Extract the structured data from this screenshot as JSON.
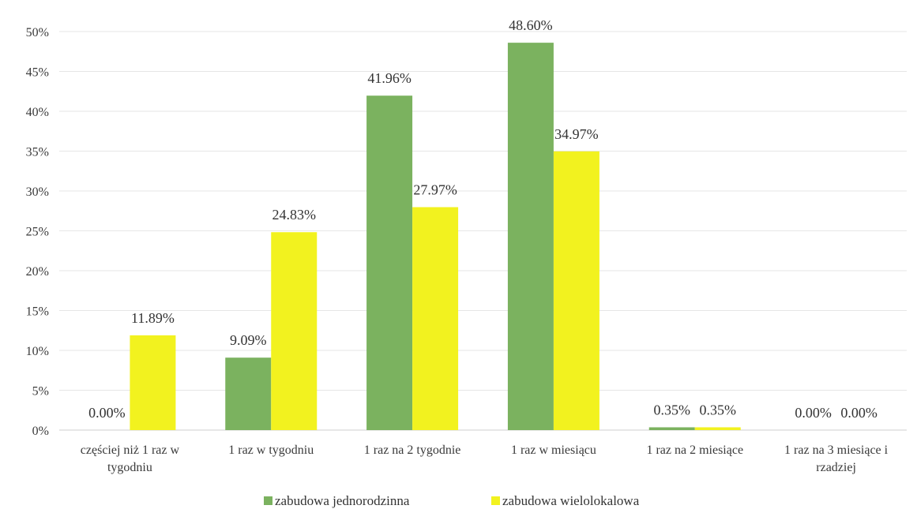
{
  "chart_data": {
    "type": "bar",
    "title": "",
    "xlabel": "",
    "ylabel": "",
    "ylim": [
      0,
      50
    ],
    "yticks": [
      "0%",
      "5%",
      "10%",
      "15%",
      "20%",
      "25%",
      "30%",
      "35%",
      "40%",
      "45%",
      "50%"
    ],
    "grid": true,
    "legend_position": "bottom",
    "categories": [
      [
        "częściej niż 1 raz w",
        "tygodniu"
      ],
      [
        "1 raz w tygodniu"
      ],
      [
        "1 raz na 2 tygodnie"
      ],
      [
        "1 raz w miesiącu"
      ],
      [
        "1 raz na 2 miesiące"
      ],
      [
        "1 raz na 3 miesiące i",
        "rzadziej"
      ]
    ],
    "series": [
      {
        "name": "zabudowa jednorodzinna",
        "color": "#7bb25f",
        "values": [
          0.0,
          9.09,
          41.96,
          48.6,
          0.35,
          0.0
        ],
        "labels": [
          "0.00%",
          "9.09%",
          "41.96%",
          "48.60%",
          "0.35%",
          "0.00%"
        ]
      },
      {
        "name": "zabudowa wielolokalowa",
        "color": "#f2f21f",
        "values": [
          11.89,
          24.83,
          27.97,
          34.97,
          0.35,
          0.0
        ],
        "labels": [
          "11.89%",
          "24.83%",
          "27.97%",
          "34.97%",
          "0.35%",
          "0.00%"
        ]
      }
    ]
  }
}
